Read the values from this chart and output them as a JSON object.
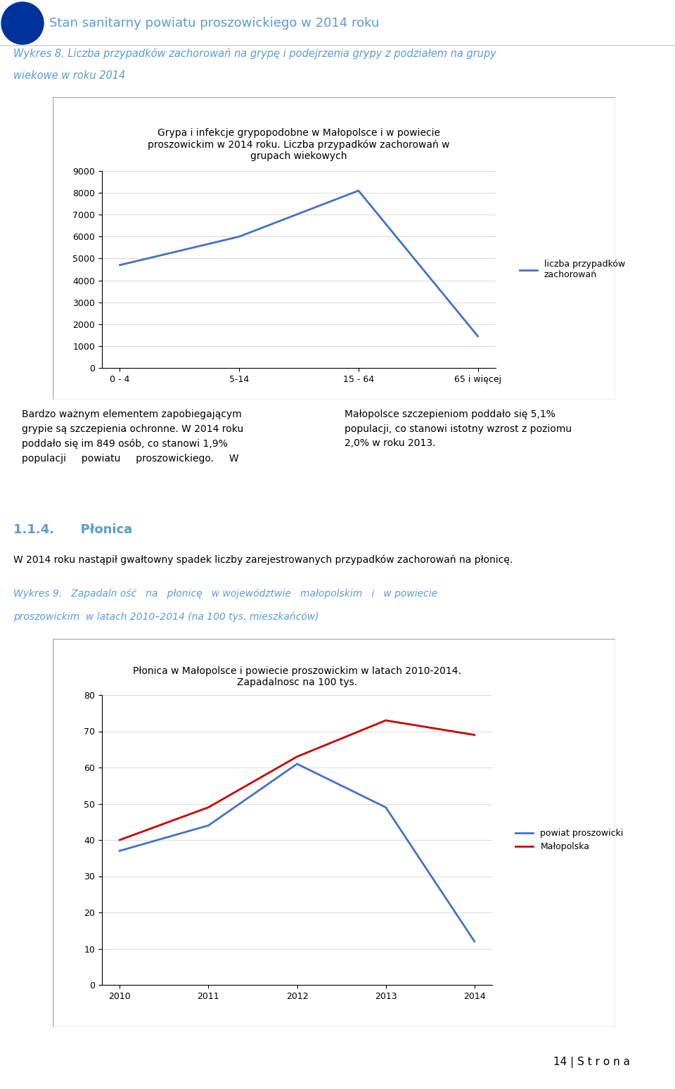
{
  "page_title": "Stan sanitarny powiatu proszowickiego w 2014 roku",
  "chart1": {
    "title": "Grypa i infekcje grypopodobne w Małopolsce i w powiecie\nproszowickim w 2014 roku. Liczba przypadków zachorowań w\ngrupach wiekowych",
    "categories": [
      "0 - 4",
      "5-14",
      "15 - 64",
      "65 i więcej"
    ],
    "values": [
      4700,
      6000,
      8100,
      1450
    ],
    "line_color": "#4472C4",
    "legend_label": "liczba przypadków\nzachоrоwań",
    "ylim": [
      0,
      9000
    ],
    "yticks": [
      0,
      1000,
      2000,
      3000,
      4000,
      5000,
      6000,
      7000,
      8000,
      9000
    ]
  },
  "paragraph1_left": "Bardzo ważnym elementem zapobiegającym\ngrypie są szczepienia ochronne. W 2014 roku\npoddało się im 849 osób, co stanowi 1,9%\npopulacji     powiatu     proszowickiego.     W",
  "paragraph1_right": "Małopolsce szczepieniom poddało się 5,1%\npopulacji, co stanowi istotny wzrost z poziomu\n2,0% w roku 2013.",
  "section_title_num": "1.1.4.",
  "section_title": "Płonica",
  "section_body": "W 2014 roku nastąpił gwałtowny spadek liczby zarejestrowanych przypadków zachorowań na płonicę.",
  "caption2_line1": "Wykres 9.   Zapadaln ość   na   płonicę   w województwie   małopolskim   i   w powiecie",
  "caption2_line2": "proszowickim  w latach 2010–2014 (na 100 tys. mieszkańców)",
  "chart2": {
    "title": "Płonica w Małopolsce i powiecie proszowickim w latach 2010-2014.\nZapadalnosc na 100 tys.",
    "years": [
      2010,
      2011,
      2012,
      2013,
      2014
    ],
    "series1_label": "powiat proszowicki",
    "series1_values": [
      37,
      44,
      61,
      49,
      12
    ],
    "series1_color": "#4472C4",
    "series2_label": "Małopolska",
    "series2_values": [
      40,
      49,
      63,
      73,
      69
    ],
    "series2_color": "#CC0000",
    "ylim": [
      0,
      80
    ],
    "yticks": [
      0,
      10,
      20,
      30,
      40,
      50,
      60,
      70,
      80
    ]
  },
  "page_number": "14",
  "header_color": "#5B9BD5",
  "italic_title_color": "#5B9BD5",
  "section_header_color": "#5B9BD5",
  "caption_color": "#5B9BD5",
  "wykres_label_line1": "Wykres 8. Liczba przypadków zachorowań na grypę i podejrzenia grypy z podziałem na grupy",
  "wykres_label_line2": "wiekowe w roku 2014"
}
